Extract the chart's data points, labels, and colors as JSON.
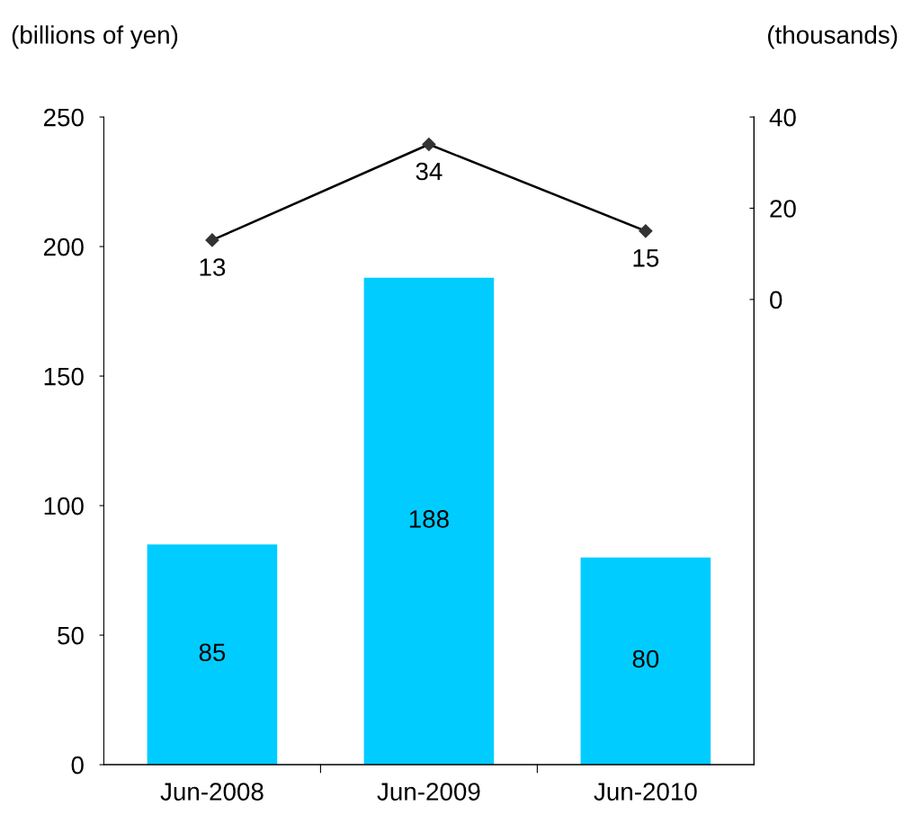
{
  "chart_data": {
    "type": "bar",
    "categories": [
      "Jun-2008",
      "Jun-2009",
      "Jun-2010"
    ],
    "ylabel": "(billions of yen)",
    "y2label": "(thousands)",
    "ylim": [
      0,
      250
    ],
    "yticks": [
      0,
      50,
      100,
      150,
      200,
      250
    ],
    "y2lim": [
      -102,
      40
    ],
    "y2ticks": [
      0,
      20,
      40
    ],
    "series": [
      {
        "color": "#00ccff",
        "values": [
          85,
          188,
          80
        ]
      },
      {
        "type": "line",
        "axis": "y2",
        "color": "#000000",
        "marker": "diamond",
        "line_style": "solid",
        "values": [
          13,
          34,
          15
        ]
      }
    ],
    "data_labels": true,
    "grid": false,
    "legend": false
  }
}
